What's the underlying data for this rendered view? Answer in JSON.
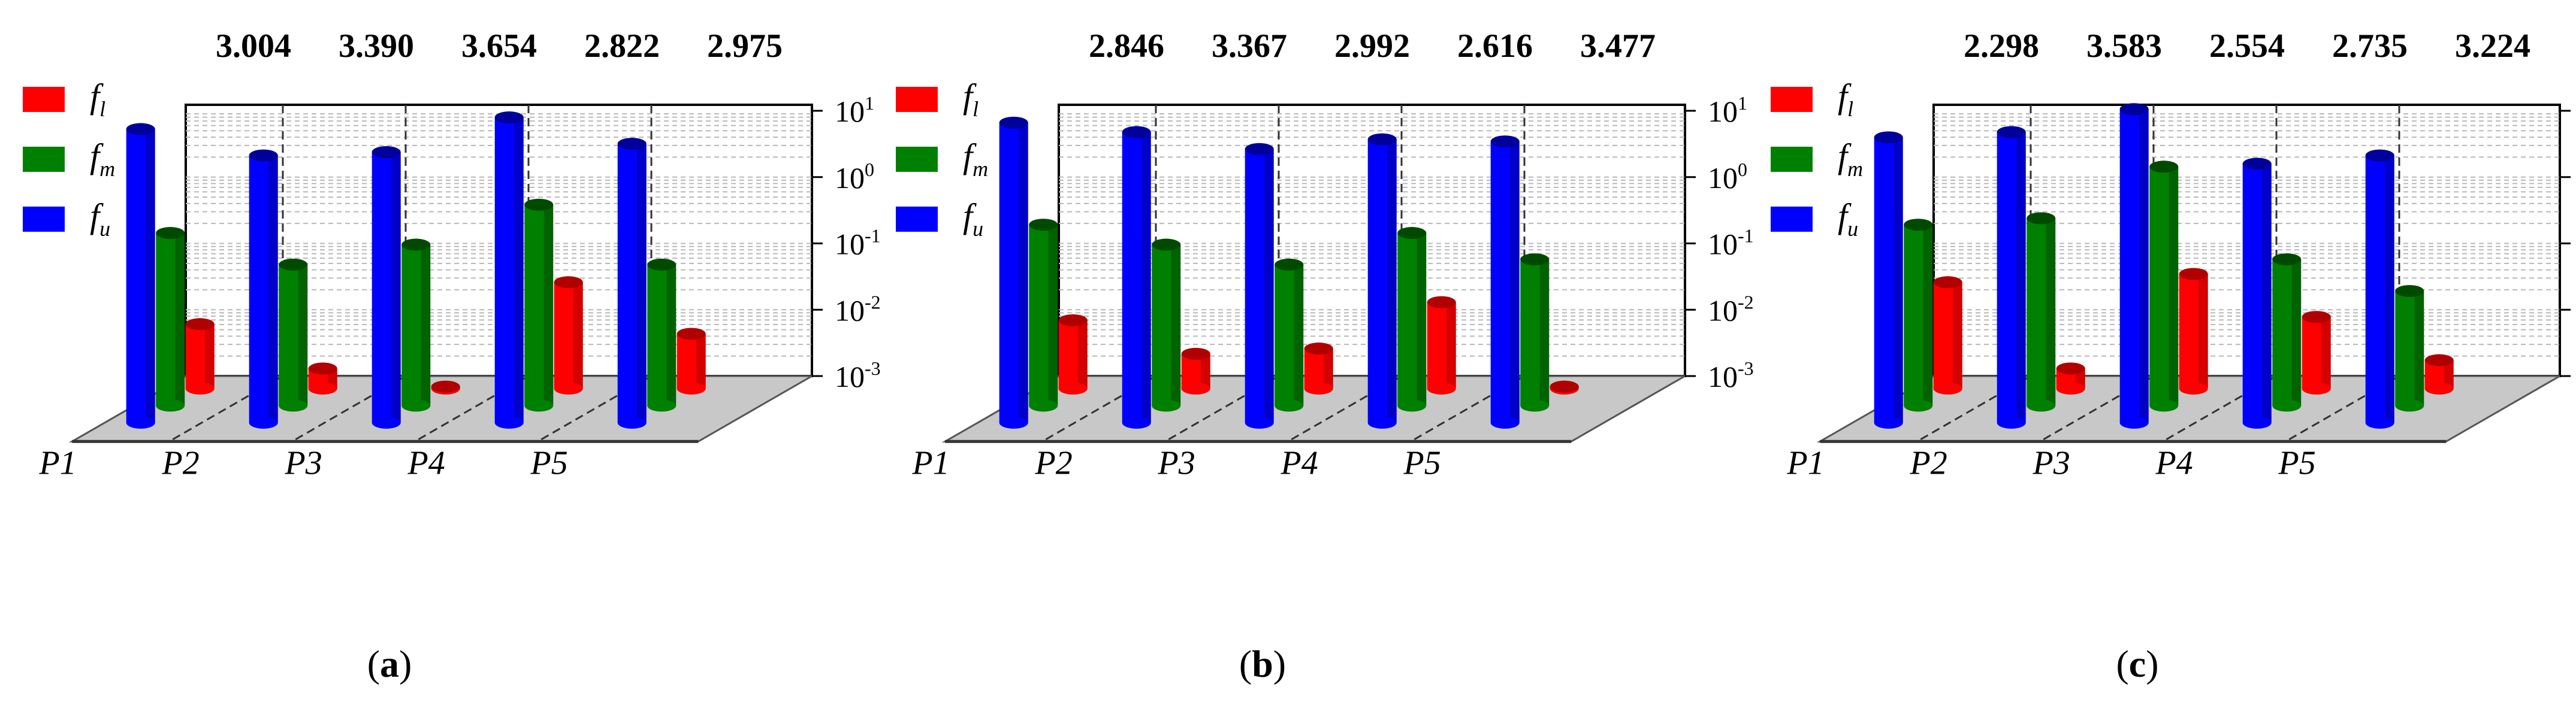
{
  "figure": {
    "legend": [
      {
        "base": "f",
        "sub": "l",
        "color": "#ff0000",
        "dark": "#b00000"
      },
      {
        "base": "f",
        "sub": "m",
        "color": "#008000",
        "dark": "#004a00"
      },
      {
        "base": "f",
        "sub": "u",
        "color": "#0000ff",
        "dark": "#00009a"
      }
    ],
    "z_ticks": [
      {
        "base": "10",
        "exp": "1",
        "value": 10
      },
      {
        "base": "10",
        "exp": "0",
        "value": 1
      },
      {
        "base": "10",
        "exp": "-1",
        "value": 0.1
      },
      {
        "base": "10",
        "exp": "-2",
        "value": 0.01
      },
      {
        "base": "10",
        "exp": "-3",
        "value": 0.001
      }
    ]
  },
  "chart_data": [
    {
      "type": "bar",
      "panel_label": "a",
      "categories": [
        "P1",
        "P2",
        "P3",
        "P4",
        "P5"
      ],
      "top_labels": [
        "3.004",
        "3.390",
        "3.654",
        "2.822",
        "2.975"
      ],
      "zscale": "log",
      "zlim": [
        0.001,
        10
      ],
      "series": [
        {
          "name": "f_l",
          "values": [
            0.007,
            0.0015,
            0.0008,
            0.03,
            0.005
          ]
        },
        {
          "name": "f_m",
          "values": [
            0.3,
            0.1,
            0.2,
            0.8,
            0.1
          ]
        },
        {
          "name": "f_u",
          "values": [
            20,
            8,
            9,
            30,
            12
          ]
        }
      ]
    },
    {
      "type": "bar",
      "panel_label": "b",
      "categories": [
        "P1",
        "P2",
        "P3",
        "P4",
        "P5"
      ],
      "top_labels": [
        "2.846",
        "3.367",
        "2.992",
        "2.616",
        "3.477"
      ],
      "zscale": "log",
      "zlim": [
        0.001,
        10
      ],
      "series": [
        {
          "name": "f_l",
          "values": [
            0.008,
            0.0025,
            0.003,
            0.015,
            0.0008
          ]
        },
        {
          "name": "f_m",
          "values": [
            0.4,
            0.2,
            0.1,
            0.3,
            0.12
          ]
        },
        {
          "name": "f_u",
          "values": [
            25,
            18,
            10,
            14,
            13
          ]
        }
      ]
    },
    {
      "type": "bar",
      "panel_label": "c",
      "categories": [
        "P1",
        "P2",
        "P3",
        "P4",
        "P5"
      ],
      "top_labels": [
        "2.298",
        "3.583",
        "2.554",
        "2.735",
        "3.224"
      ],
      "zscale": "log",
      "zlim": [
        0.001,
        10
      ],
      "series": [
        {
          "name": "f_l",
          "values": [
            0.03,
            0.0015,
            0.04,
            0.009,
            0.002
          ]
        },
        {
          "name": "f_m",
          "values": [
            0.4,
            0.5,
            3,
            0.12,
            0.04
          ]
        },
        {
          "name": "f_u",
          "values": [
            15,
            18,
            40,
            6,
            8
          ]
        }
      ]
    }
  ]
}
